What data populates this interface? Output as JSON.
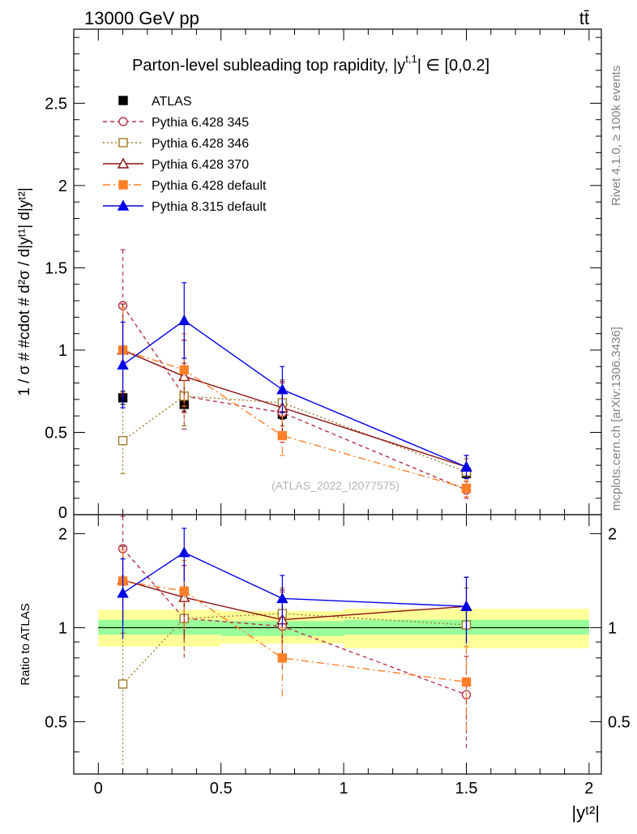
{
  "header": {
    "energy_label": "13000 GeV pp",
    "process_label": "tt̄"
  },
  "side_labels": {
    "rivet": "Rivet 4.1.0, ≥ 100k events",
    "mcplots": "mcplots.cern.ch [arXiv:1306.3436]"
  },
  "chart_data": [
    {
      "type": "line",
      "panel": "main",
      "title": "Parton-level subleading top rapidity, |y",
      "title_sup": "t,1",
      "title_tail": "| ∈ [0,0.2]",
      "ylabel": "1 / σ # #cdot # d²σ / d|yᵗ¹| d|yᵗ²|",
      "xlim": [
        -0.1,
        2.05
      ],
      "ylim": [
        0,
        2.95
      ],
      "yticks": [
        0.5,
        1,
        1.5,
        2,
        2.5
      ],
      "ytick_labels": [
        "0.5",
        "1",
        "1.5",
        "2",
        "2.5"
      ],
      "bottom_tick_label": "0",
      "watermark": "(ATLAS_2022_I2077575)",
      "x": [
        0.1,
        0.35,
        0.75,
        1.5
      ],
      "series": [
        {
          "name": "ATLAS",
          "color": "#000000",
          "marker": "square-filled",
          "line": "none",
          "values": [
            0.71,
            0.67,
            0.61,
            0.25
          ],
          "err": [
            0.04,
            0.04,
            0.03,
            0.02
          ]
        },
        {
          "name": "Pythia 6.428 345",
          "color": "#b5324a",
          "marker": "circle-open",
          "line": "dashed",
          "values": [
            1.27,
            0.72,
            0.62,
            0.15
          ],
          "err": [
            0.34,
            0.2,
            0.18,
            0.05
          ]
        },
        {
          "name": "Pythia 6.428 346",
          "color": "#9c7a28",
          "marker": "square-open",
          "line": "dotted",
          "values": [
            0.45,
            0.72,
            0.68,
            0.26
          ],
          "err": [
            0.2,
            0.18,
            0.14,
            0.08
          ]
        },
        {
          "name": "Pythia 6.428 370",
          "color": "#8b1010",
          "marker": "triangle-open",
          "line": "solid",
          "values": [
            1.0,
            0.84,
            0.65,
            0.29
          ],
          "err": [
            0.28,
            0.22,
            0.16,
            0.07
          ]
        },
        {
          "name": "Pythia 6.428 default",
          "color": "#ff7f27",
          "marker": "square-filled",
          "line": "dashdot",
          "values": [
            1.0,
            0.88,
            0.48,
            0.16
          ],
          "err": [
            0.26,
            0.22,
            0.12,
            0.05
          ]
        },
        {
          "name": "Pythia 8.315 default",
          "color": "#0000e6",
          "marker": "triangle-filled",
          "line": "solid",
          "values": [
            0.91,
            1.18,
            0.76,
            0.29
          ],
          "err": [
            0.26,
            0.23,
            0.14,
            0.07
          ]
        }
      ]
    },
    {
      "type": "line",
      "panel": "ratio",
      "ylabel": "Ratio to ATLAS",
      "xlabel": "|yᵗ²|",
      "xlim": [
        -0.1,
        2.05
      ],
      "ylim": [
        0.34,
        2.3
      ],
      "yticks": [
        0.5,
        1,
        2
      ],
      "ytick_labels": [
        "0.5",
        "1",
        "2"
      ],
      "xticks": [
        0,
        0.5,
        1,
        1.5,
        2
      ],
      "xtick_labels": [
        "0",
        "0.5",
        "1",
        "1.5",
        "2"
      ],
      "reference": 1,
      "x": [
        0.1,
        0.35,
        0.75,
        1.5
      ],
      "bands": [
        {
          "x0": 0.0,
          "x1": 0.5,
          "green": [
            0.95,
            1.06
          ],
          "yellow": [
            0.87,
            1.14
          ]
        },
        {
          "x0": 0.5,
          "x1": 1.0,
          "green": [
            0.94,
            1.05
          ],
          "yellow": [
            0.89,
            1.13
          ]
        },
        {
          "x0": 1.0,
          "x1": 2.0,
          "green": [
            0.95,
            1.06
          ],
          "yellow": [
            0.86,
            1.15
          ]
        }
      ],
      "series": [
        {
          "name": "Pythia 6.428 345",
          "values": [
            1.79,
            1.07,
            1.01,
            0.61
          ],
          "err": [
            0.48,
            0.27,
            0.29,
            0.2
          ]
        },
        {
          "name": "Pythia 6.428 346",
          "values": [
            0.66,
            1.07,
            1.11,
            1.02
          ],
          "err": [
            0.3,
            0.26,
            0.23,
            0.32
          ]
        },
        {
          "name": "Pythia 6.428 370",
          "values": [
            1.42,
            1.25,
            1.06,
            1.17
          ],
          "err": [
            0.4,
            0.33,
            0.26,
            0.28
          ]
        },
        {
          "name": "Pythia 6.428 default",
          "values": [
            1.41,
            1.31,
            0.8,
            0.67
          ],
          "err": [
            0.37,
            0.33,
            0.2,
            0.2
          ]
        },
        {
          "name": "Pythia 8.315 default",
          "values": [
            1.29,
            1.74,
            1.24,
            1.17
          ],
          "err": [
            0.37,
            0.34,
            0.23,
            0.28
          ]
        }
      ]
    }
  ]
}
